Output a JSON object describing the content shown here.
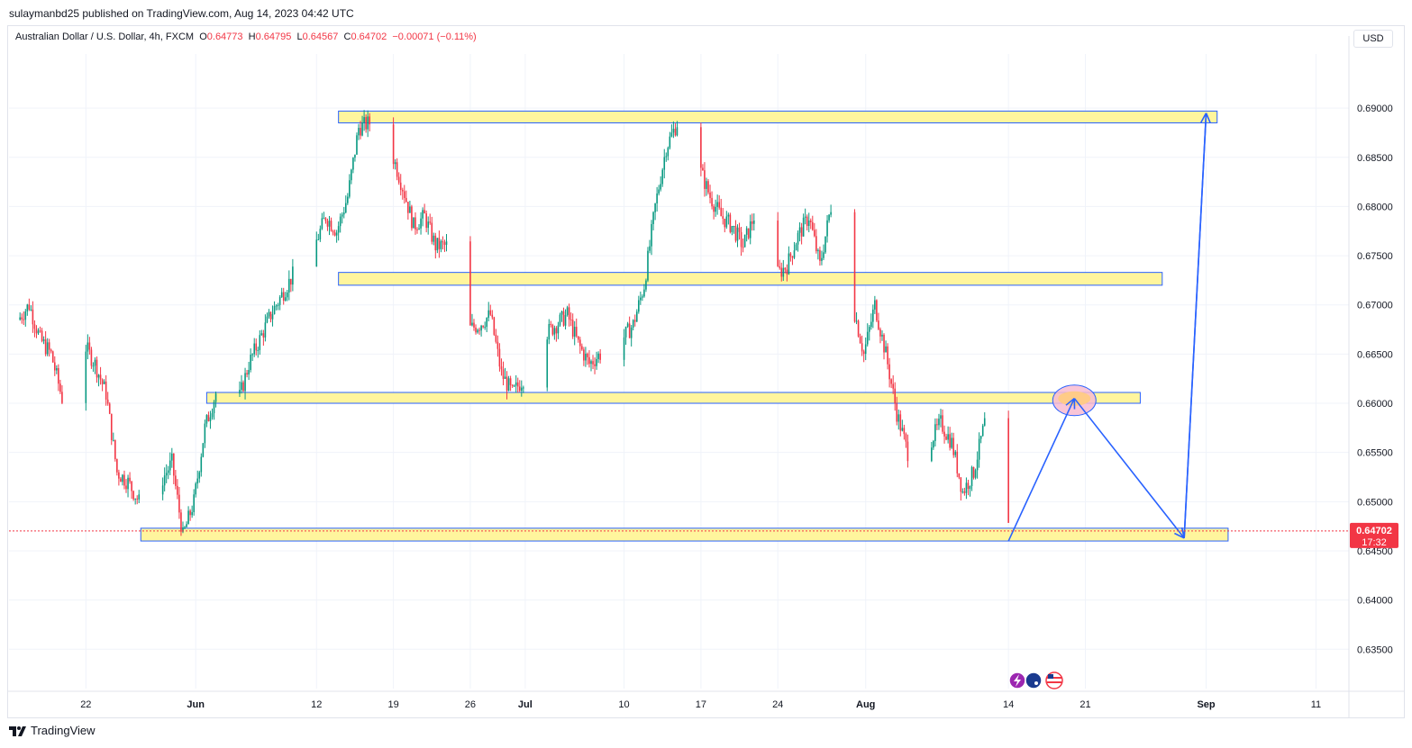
{
  "header": {
    "published_by": "sulaymanbd25 published on TradingView.com, Aug 14, 2023 04:42 UTC"
  },
  "legend": {
    "symbol": "Australian Dollar / U.S. Dollar, 4h, FXCM",
    "open_label": "O",
    "open": "0.64773",
    "high_label": "H",
    "high": "0.64795",
    "low_label": "L",
    "low": "0.64567",
    "close_label": "C",
    "close": "0.64702",
    "change": "−0.00071 (−0.11%)"
  },
  "currency_button": "USD",
  "price_badge": {
    "price": "0.64702",
    "countdown": "17:32",
    "color": "#f23645"
  },
  "footer": {
    "brand": "TradingView"
  },
  "colors": {
    "up": "#089981",
    "down": "#f23645",
    "zone_fill": "#fff59d",
    "zone_border": "#2962ff",
    "projection": "#2962ff"
  },
  "chart_data": {
    "type": "candlestick",
    "symbol": "Australian Dollar / U.S. Dollar",
    "timeframe": "4h",
    "y_axis": {
      "ticks": [
        "0.69000",
        "0.68500",
        "0.68000",
        "0.67500",
        "0.67000",
        "0.66500",
        "0.66000",
        "0.65500",
        "0.65000",
        "0.64500",
        "0.64000",
        "0.63500"
      ],
      "range": [
        0.631,
        0.6955
      ]
    },
    "x_axis": {
      "ticks": [
        {
          "label": "22",
          "bold": false
        },
        {
          "label": "Jun",
          "bold": true
        },
        {
          "label": "12",
          "bold": false
        },
        {
          "label": "19",
          "bold": false
        },
        {
          "label": "26",
          "bold": false
        },
        {
          "label": "Jul",
          "bold": true
        },
        {
          "label": "10",
          "bold": false
        },
        {
          "label": "17",
          "bold": false
        },
        {
          "label": "24",
          "bold": false
        },
        {
          "label": "Aug",
          "bold": true
        },
        {
          "label": "14",
          "bold": false
        },
        {
          "label": "21",
          "bold": false
        },
        {
          "label": "Sep",
          "bold": true
        },
        {
          "label": "11",
          "bold": false
        }
      ]
    },
    "price_path": [
      [
        "2023-05-16",
        0.6685
      ],
      [
        "2023-05-17",
        0.67
      ],
      [
        "2023-05-18",
        0.6665
      ],
      [
        "2023-05-19",
        0.665
      ],
      [
        "2023-05-20",
        0.6605
      ],
      [
        "2023-05-22",
        0.666
      ],
      [
        "2023-05-23",
        0.664
      ],
      [
        "2023-05-24",
        0.661
      ],
      [
        "2023-05-25",
        0.653
      ],
      [
        "2023-05-26",
        0.652
      ],
      [
        "2023-05-27",
        0.65
      ],
      [
        "2023-05-28",
        0.6535
      ],
      [
        "2023-05-29",
        0.652
      ],
      [
        "2023-05-30",
        0.654
      ],
      [
        "2023-05-31",
        0.6465
      ],
      [
        "2023-06-01",
        0.65
      ],
      [
        "2023-06-02",
        0.6575
      ],
      [
        "2023-06-03",
        0.661
      ],
      [
        "2023-06-05",
        0.66
      ],
      [
        "2023-06-06",
        0.664
      ],
      [
        "2023-06-07",
        0.6665
      ],
      [
        "2023-06-08",
        0.669
      ],
      [
        "2023-06-09",
        0.671
      ],
      [
        "2023-06-10",
        0.673
      ],
      [
        "2023-06-12",
        0.676
      ],
      [
        "2023-06-13",
        0.679
      ],
      [
        "2023-06-14",
        0.6775
      ],
      [
        "2023-06-15",
        0.681
      ],
      [
        "2023-06-16",
        0.688
      ],
      [
        "2023-06-17",
        0.6885
      ],
      [
        "2023-06-18",
        0.687
      ],
      [
        "2023-06-19",
        0.6855
      ],
      [
        "2023-06-20",
        0.682
      ],
      [
        "2023-06-21",
        0.678
      ],
      [
        "2023-06-22",
        0.679
      ],
      [
        "2023-06-23",
        0.676
      ],
      [
        "2023-06-24",
        0.676
      ],
      [
        "2023-06-25",
        0.67
      ],
      [
        "2023-06-26",
        0.6675
      ],
      [
        "2023-06-27",
        0.668
      ],
      [
        "2023-06-28",
        0.669
      ],
      [
        "2023-06-29",
        0.663
      ],
      [
        "2023-06-30",
        0.661
      ],
      [
        "2023-07-01",
        0.6625
      ],
      [
        "2023-07-02",
        0.666
      ],
      [
        "2023-07-03",
        0.667
      ],
      [
        "2023-07-04",
        0.668
      ],
      [
        "2023-07-05",
        0.669
      ],
      [
        "2023-07-06",
        0.666
      ],
      [
        "2023-07-07",
        0.664
      ],
      [
        "2023-07-08",
        0.665
      ],
      [
        "2023-07-09",
        0.668
      ],
      [
        "2023-07-10",
        0.6665
      ],
      [
        "2023-07-11",
        0.668
      ],
      [
        "2023-07-12",
        0.672
      ],
      [
        "2023-07-13",
        0.68
      ],
      [
        "2023-07-14",
        0.686
      ],
      [
        "2023-07-15",
        0.6885
      ],
      [
        "2023-07-16",
        0.687
      ],
      [
        "2023-07-17",
        0.684
      ],
      [
        "2023-07-18",
        0.681
      ],
      [
        "2023-07-19",
        0.679
      ],
      [
        "2023-07-20",
        0.678
      ],
      [
        "2023-07-21",
        0.676
      ],
      [
        "2023-07-22",
        0.679
      ],
      [
        "2023-07-23",
        0.676
      ],
      [
        "2023-07-24",
        0.673
      ],
      [
        "2023-07-25",
        0.674
      ],
      [
        "2023-07-26",
        0.677
      ],
      [
        "2023-07-27",
        0.679
      ],
      [
        "2023-07-28",
        0.674
      ],
      [
        "2023-07-29",
        0.68
      ],
      [
        "2023-07-30",
        0.676
      ],
      [
        "2023-07-31",
        0.67
      ],
      [
        "2023-08-01",
        0.665
      ],
      [
        "2023-08-02",
        0.67
      ],
      [
        "2023-08-03",
        0.665
      ],
      [
        "2023-08-04",
        0.659
      ],
      [
        "2023-08-05",
        0.655
      ],
      [
        "2023-08-06",
        0.654
      ],
      [
        "2023-08-07",
        0.656
      ],
      [
        "2023-08-08",
        0.658
      ],
      [
        "2023-08-09",
        0.656
      ],
      [
        "2023-08-10",
        0.651
      ],
      [
        "2023-08-11",
        0.653
      ],
      [
        "2023-08-12",
        0.658
      ],
      [
        "2023-08-13",
        0.652
      ],
      [
        "2023-08-14",
        0.647
      ]
    ],
    "zones": [
      {
        "from": "2023-06-14",
        "to": "2023-09-02",
        "low": 0.6885,
        "high": 0.6897
      },
      {
        "from": "2023-06-14",
        "to": "2023-08-28",
        "low": 0.672,
        "high": 0.6733
      },
      {
        "from": "2023-06-02",
        "to": "2023-08-26",
        "low": 0.66,
        "high": 0.6611
      },
      {
        "from": "2023-05-27",
        "to": "2023-09-03",
        "low": 0.646,
        "high": 0.6473
      }
    ],
    "projection": {
      "points": [
        [
          "2023-08-14",
          0.646
        ],
        [
          "2023-08-20",
          0.6605
        ],
        [
          "2023-08-30",
          0.6463
        ],
        [
          "2023-09-01",
          0.6895
        ]
      ],
      "target_circle": [
        "2023-08-20",
        0.6603
      ]
    },
    "last_price": 0.64702
  }
}
